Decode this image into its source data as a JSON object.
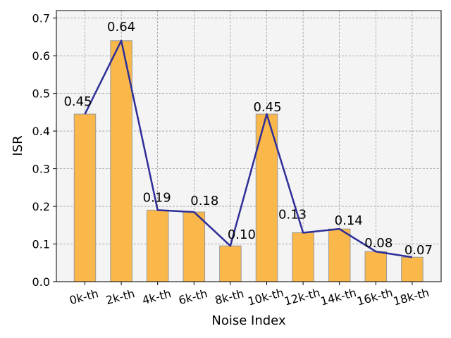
{
  "chart_data": {
    "type": "bar",
    "title": "",
    "xlabel": "Noise Index",
    "ylabel": "ISR",
    "categories": [
      "0k-th",
      "2k-th",
      "4k-th",
      "6k-th",
      "8k-th",
      "10k-th",
      "12k-th",
      "14k-th",
      "16k-th",
      "18k-th"
    ],
    "values": [
      0.445,
      0.64,
      0.19,
      0.185,
      0.095,
      0.445,
      0.13,
      0.14,
      0.08,
      0.065
    ],
    "value_labels": [
      "0.45",
      "0.64",
      "0.19",
      "0.18",
      "0.10",
      "0.45",
      "0.13",
      "0.14",
      "0.08",
      "0.07"
    ],
    "overlay_line": {
      "values": [
        0.445,
        0.64,
        0.19,
        0.185,
        0.095,
        0.445,
        0.13,
        0.14,
        0.08,
        0.065
      ],
      "color": "#2e2e99"
    },
    "ylim": [
      0,
      0.72
    ],
    "yticks": [
      0.0,
      0.1,
      0.2,
      0.3,
      0.4,
      0.5,
      0.6,
      0.7
    ],
    "ytick_labels": [
      "0.0",
      "0.1",
      "0.2",
      "0.3",
      "0.4",
      "0.5",
      "0.6",
      "0.7"
    ],
    "xtick_rotation": 15,
    "grid": true,
    "legend": "none",
    "colors": {
      "bar_fill": "#fbb84a",
      "bar_edge": "#999999",
      "plot_background": "#f4f4f4",
      "grid": "#808080"
    }
  }
}
